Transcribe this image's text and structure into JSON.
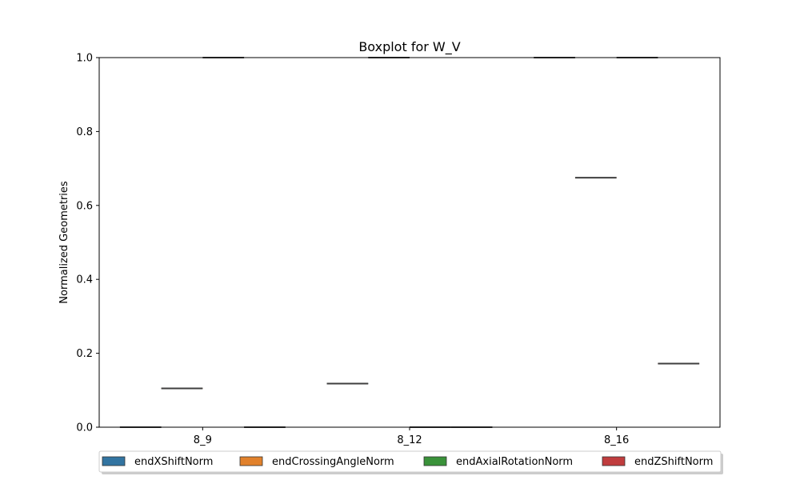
{
  "chart_data": {
    "type": "box",
    "title": "Boxplot for W_V",
    "xlabel": "",
    "ylabel": "Normalized Geometries",
    "categories": [
      "8_9",
      "8_12",
      "8_16"
    ],
    "ylim": [
      0,
      1.0
    ],
    "yticks": [
      "0.0",
      "0.2",
      "0.4",
      "0.6",
      "0.8",
      "1.0"
    ],
    "grid": false,
    "legend_position": "bottom",
    "series": [
      {
        "name": "endXShiftNorm",
        "color": "#3274a1",
        "values": [
          0.0,
          0.118,
          1.0
        ]
      },
      {
        "name": "endCrossingAngleNorm",
        "color": "#e1812c",
        "values": [
          0.105,
          1.0,
          0.675
        ]
      },
      {
        "name": "endAxialRotationNorm",
        "color": "#3a923a",
        "values": [
          1.0,
          0.0,
          1.0
        ]
      },
      {
        "name": "endZShiftNorm",
        "color": "#c03d3e",
        "values": [
          0.0,
          0.0,
          0.172
        ]
      }
    ]
  }
}
